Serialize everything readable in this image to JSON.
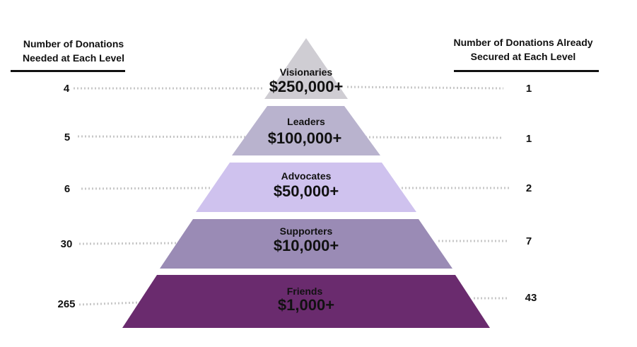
{
  "left_header": {
    "line1": "Number of Donations",
    "line2": "Needed at Each Level"
  },
  "right_header": {
    "line1": "Number of Donations Already",
    "line2": "Secured at Each Level"
  },
  "levels": [
    {
      "name": "Visionaries",
      "amount": "$250,000+",
      "needed": "4",
      "secured": "1",
      "color": "#cfcdd3"
    },
    {
      "name": "Leaders",
      "amount": "$100,000+",
      "needed": "5",
      "secured": "1",
      "color": "#b9b3ce"
    },
    {
      "name": "Advocates",
      "amount": "$50,000+",
      "needed": "6",
      "secured": "2",
      "color": "#cfc2ee"
    },
    {
      "name": "Supporters",
      "amount": "$10,000+",
      "needed": "30",
      "secured": "7",
      "color": "#9a8bb5"
    },
    {
      "name": "Friends",
      "amount": "$1,000+",
      "needed": "265",
      "secured": "43",
      "color": "#6a2b6e"
    }
  ],
  "colors": {
    "dotted_leader": "#c8c8c8",
    "text": "#111111"
  }
}
